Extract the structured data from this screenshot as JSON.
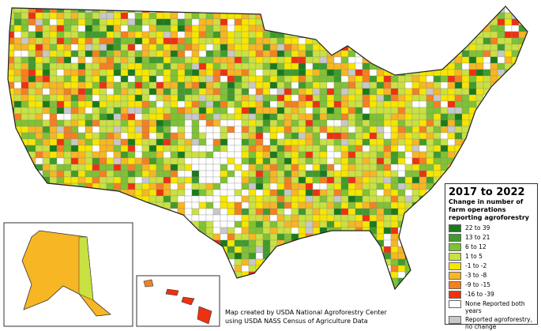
{
  "legend": {
    "title": "2017 to 2022",
    "subtitle": "Change in number of farm operations reporting agroforestry",
    "items": [
      {
        "label": "22 to 39",
        "color": "#1b7a1b"
      },
      {
        "label": "13 to 21",
        "color": "#3f9c2a"
      },
      {
        "label": "6 to 12",
        "color": "#7fc233"
      },
      {
        "label": "1 to 5",
        "color": "#c9e142"
      },
      {
        "label": "-1 to -2",
        "color": "#f6e600"
      },
      {
        "label": "-3 to -8",
        "color": "#f7b623"
      },
      {
        "label": "-9 to -15",
        "color": "#f4801f"
      },
      {
        "label": "-16 to -39",
        "color": "#ee3110"
      },
      {
        "label": "None Reported both years",
        "color": "#ffffff"
      },
      {
        "label": "Reported agroforestry, no change",
        "color": "#c8c8c8"
      }
    ]
  },
  "credit_lines": [
    "Map created by USDA National Agroforestry Center",
    "using USDA NASS Census of Agriculture Data"
  ]
}
